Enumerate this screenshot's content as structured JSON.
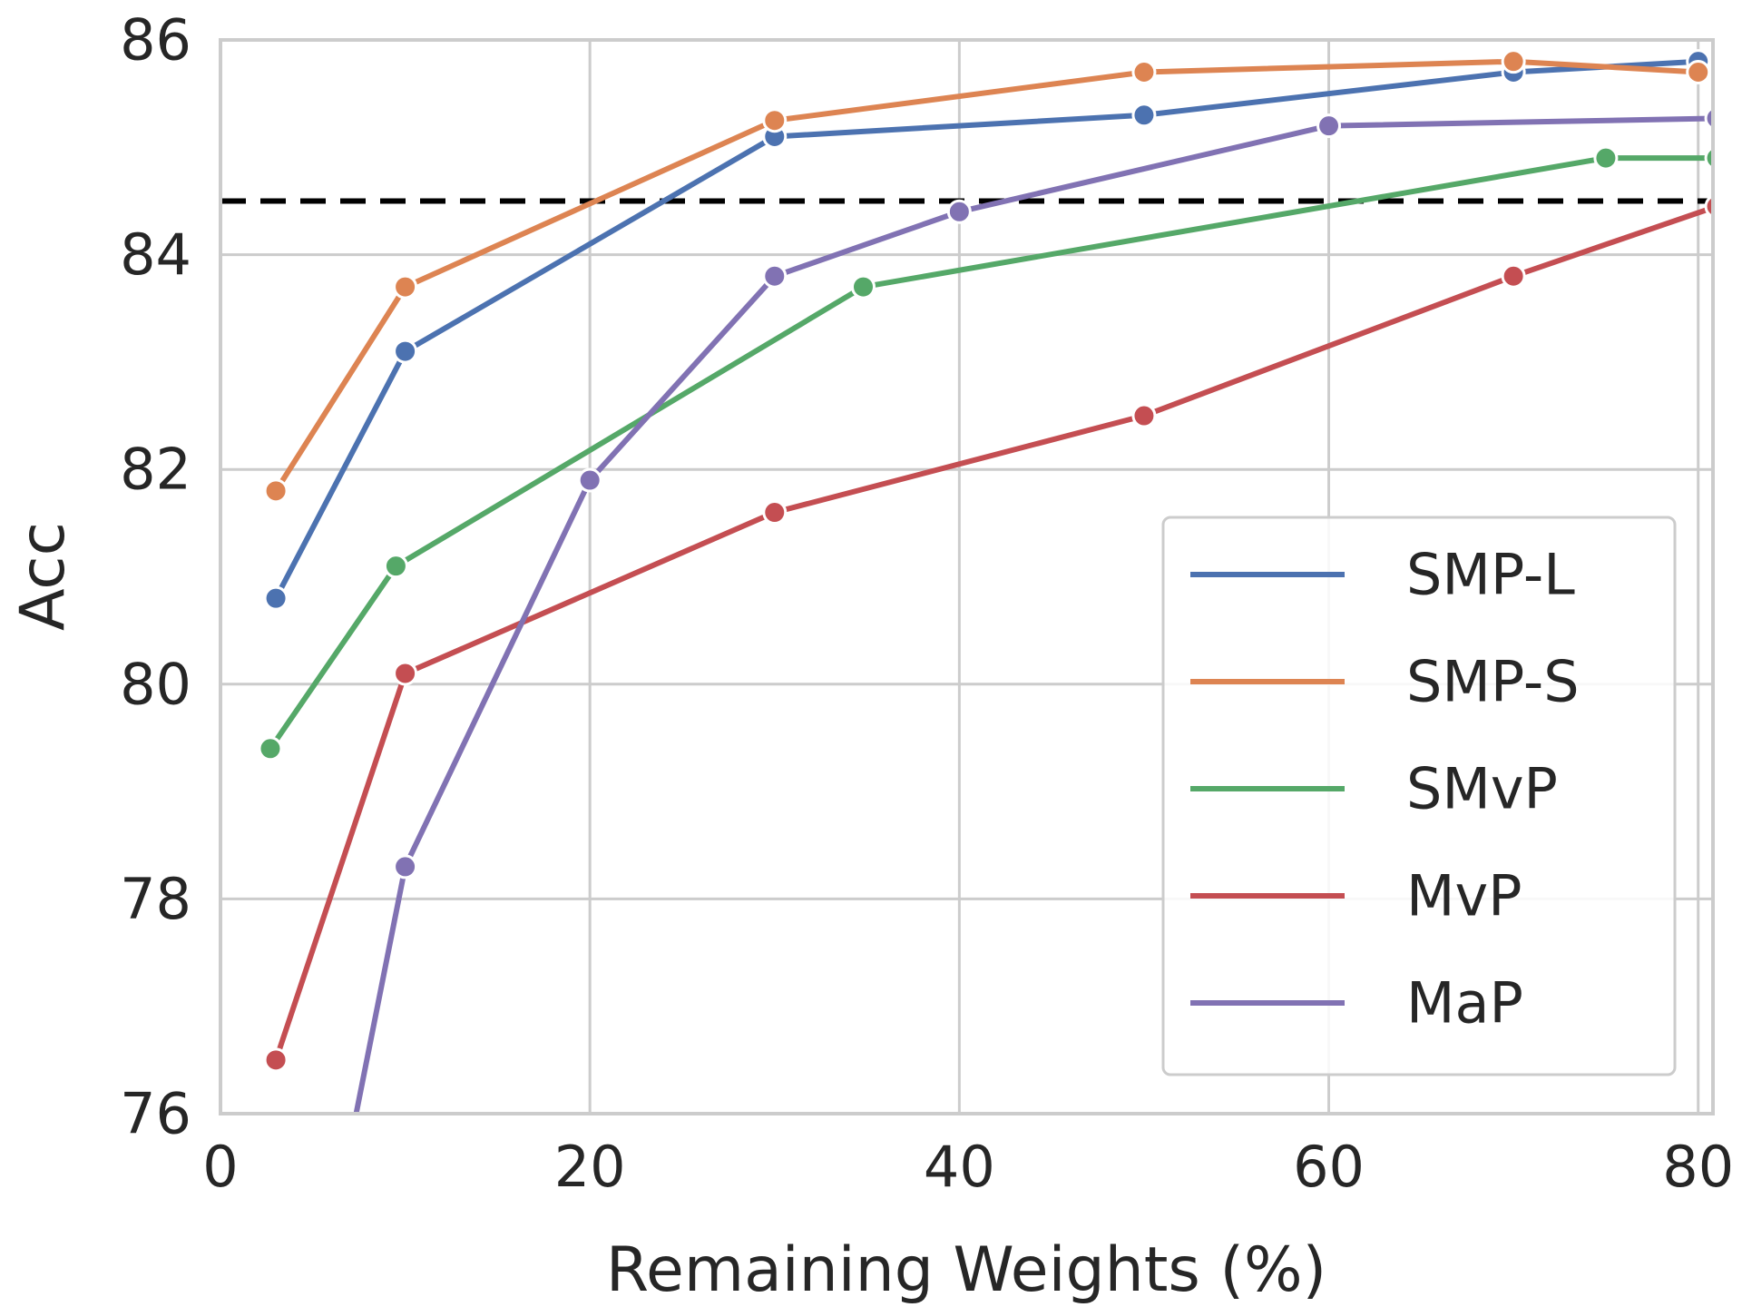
{
  "chart_data": {
    "type": "line",
    "title": "",
    "xlabel": "Remaining Weights (%)",
    "ylabel": "Acc",
    "xlim": [
      0,
      80.8
    ],
    "ylim": [
      76,
      86
    ],
    "xticks": [
      0,
      20,
      40,
      60,
      80
    ],
    "yticks": [
      76,
      78,
      80,
      82,
      84,
      86
    ],
    "grid": true,
    "legend_position": "lower-right",
    "reference_line": {
      "y": 84.5,
      "style": "dashed",
      "color": "#000000"
    },
    "series": [
      {
        "name": "SMP-L",
        "color": "#4c72b0",
        "x": [
          3,
          10,
          30,
          50,
          70,
          80
        ],
        "y": [
          80.8,
          83.1,
          85.1,
          85.3,
          85.7,
          85.8
        ]
      },
      {
        "name": "SMP-S",
        "color": "#dd8452",
        "x": [
          3,
          10,
          30,
          50,
          70,
          80
        ],
        "y": [
          81.8,
          83.7,
          85.25,
          85.7,
          85.8,
          85.7
        ]
      },
      {
        "name": "SMvP",
        "color": "#55a868",
        "x": [
          2.7,
          9.5,
          34.8,
          75,
          81
        ],
        "y": [
          79.4,
          81.1,
          83.7,
          84.9,
          84.9
        ]
      },
      {
        "name": "MvP",
        "color": "#c44e52",
        "x": [
          3,
          10,
          30,
          50,
          70,
          81
        ],
        "y": [
          76.5,
          80.1,
          81.6,
          82.5,
          83.8,
          84.45
        ]
      },
      {
        "name": "MaP",
        "color": "#8172b3",
        "x": [
          7,
          10,
          20,
          30,
          40,
          60,
          81
        ],
        "y": [
          75.7,
          78.3,
          81.9,
          83.8,
          84.4,
          85.2,
          85.27
        ]
      }
    ]
  }
}
